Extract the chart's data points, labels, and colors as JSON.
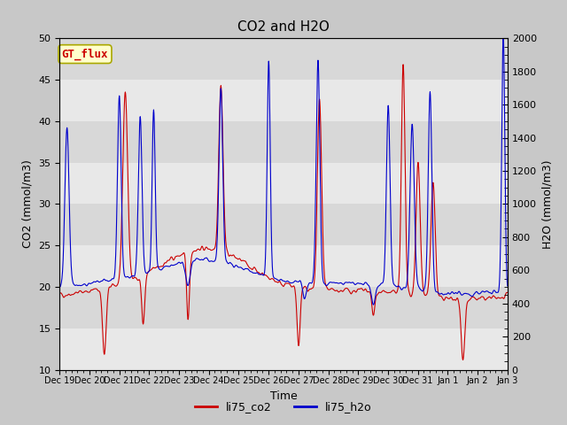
{
  "title": "CO2 and H2O",
  "xlabel": "Time",
  "ylabel_left": "CO2 (mmol/m3)",
  "ylabel_right": "H2O (mmol/m3)",
  "legend_label1": "li75_co2",
  "legend_label2": "li75_h2o",
  "box_label": "GT_flux",
  "co2_color": "#cc0000",
  "h2o_color": "#0000cc",
  "ylim_left": [
    10,
    50
  ],
  "ylim_right": [
    0,
    2000
  ],
  "yticks_left": [
    10,
    15,
    20,
    25,
    30,
    35,
    40,
    45,
    50
  ],
  "yticks_right": [
    0,
    200,
    400,
    600,
    800,
    1000,
    1200,
    1400,
    1600,
    1800,
    2000
  ],
  "band_colors": [
    "#e8e8e8",
    "#d8d8d8"
  ],
  "fig_bg": "#c8c8c8",
  "linewidth": 0.8,
  "seed": 42,
  "day_labels": [
    "Dec 19",
    "Dec 20",
    "Dec 21",
    "Dec 22",
    "Dec 23",
    "Dec 24",
    "Dec 25",
    "Dec 26",
    "Dec 27",
    "Dec 28",
    "Dec 29",
    "Dec 30",
    "Dec 31",
    "Jan 1",
    "Jan 2",
    "Jan 3"
  ]
}
